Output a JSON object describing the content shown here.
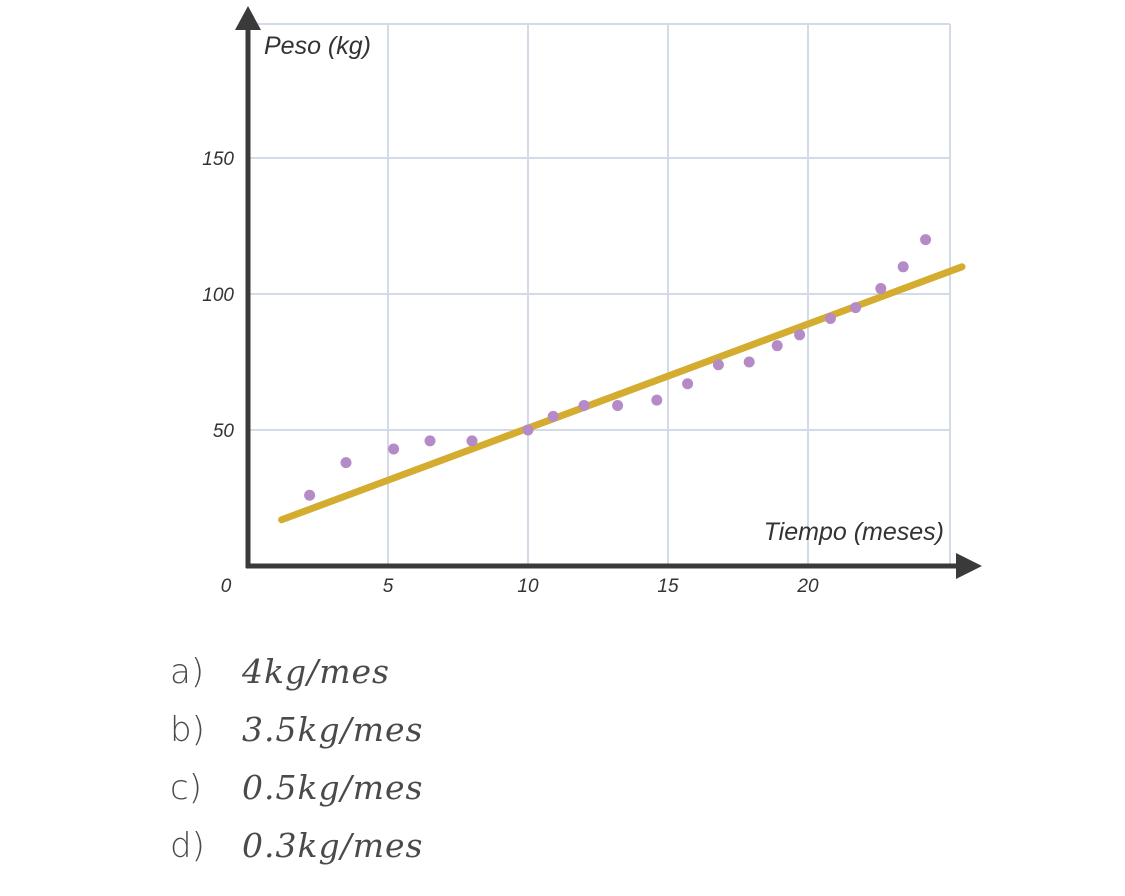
{
  "chart_data": {
    "type": "scatter",
    "xlabel": "Tiempo (meses)",
    "ylabel": "Peso (kg)",
    "xlim": [
      0,
      25
    ],
    "ylim": [
      0,
      195
    ],
    "x_ticks": [
      0,
      5,
      10,
      15,
      20
    ],
    "y_ticks": [
      50,
      100,
      150
    ],
    "grid": true,
    "colors": {
      "points": "#b48ac7",
      "trend": "#d4ac2f",
      "axis": "#3a3a3a",
      "grid": "#d4dbe8"
    },
    "series": [
      {
        "values": [
          {
            "x": 2.2,
            "y": 26
          },
          {
            "x": 3.5,
            "y": 38
          },
          {
            "x": 5.2,
            "y": 43
          },
          {
            "x": 6.5,
            "y": 46
          },
          {
            "x": 8.0,
            "y": 46
          },
          {
            "x": 10.0,
            "y": 50
          },
          {
            "x": 10.9,
            "y": 55
          },
          {
            "x": 12.0,
            "y": 59
          },
          {
            "x": 13.2,
            "y": 59
          },
          {
            "x": 14.6,
            "y": 61
          },
          {
            "x": 15.7,
            "y": 67
          },
          {
            "x": 16.8,
            "y": 74
          },
          {
            "x": 17.9,
            "y": 75
          },
          {
            "x": 18.9,
            "y": 81
          },
          {
            "x": 19.7,
            "y": 85
          },
          {
            "x": 20.8,
            "y": 91
          },
          {
            "x": 21.7,
            "y": 95
          },
          {
            "x": 22.6,
            "y": 102
          },
          {
            "x": 23.4,
            "y": 110
          },
          {
            "x": 24.2,
            "y": 120
          }
        ]
      }
    ],
    "trend_line": {
      "x": [
        1.2,
        25.5
      ],
      "y": [
        17,
        110
      ]
    }
  },
  "options": [
    {
      "letter": "a)",
      "value": "4kg/mes"
    },
    {
      "letter": "b)",
      "value": "3.5kg/mes"
    },
    {
      "letter": "c)",
      "value": "0.5kg/mes"
    },
    {
      "letter": "d)",
      "value": "0.3kg/mes"
    }
  ]
}
